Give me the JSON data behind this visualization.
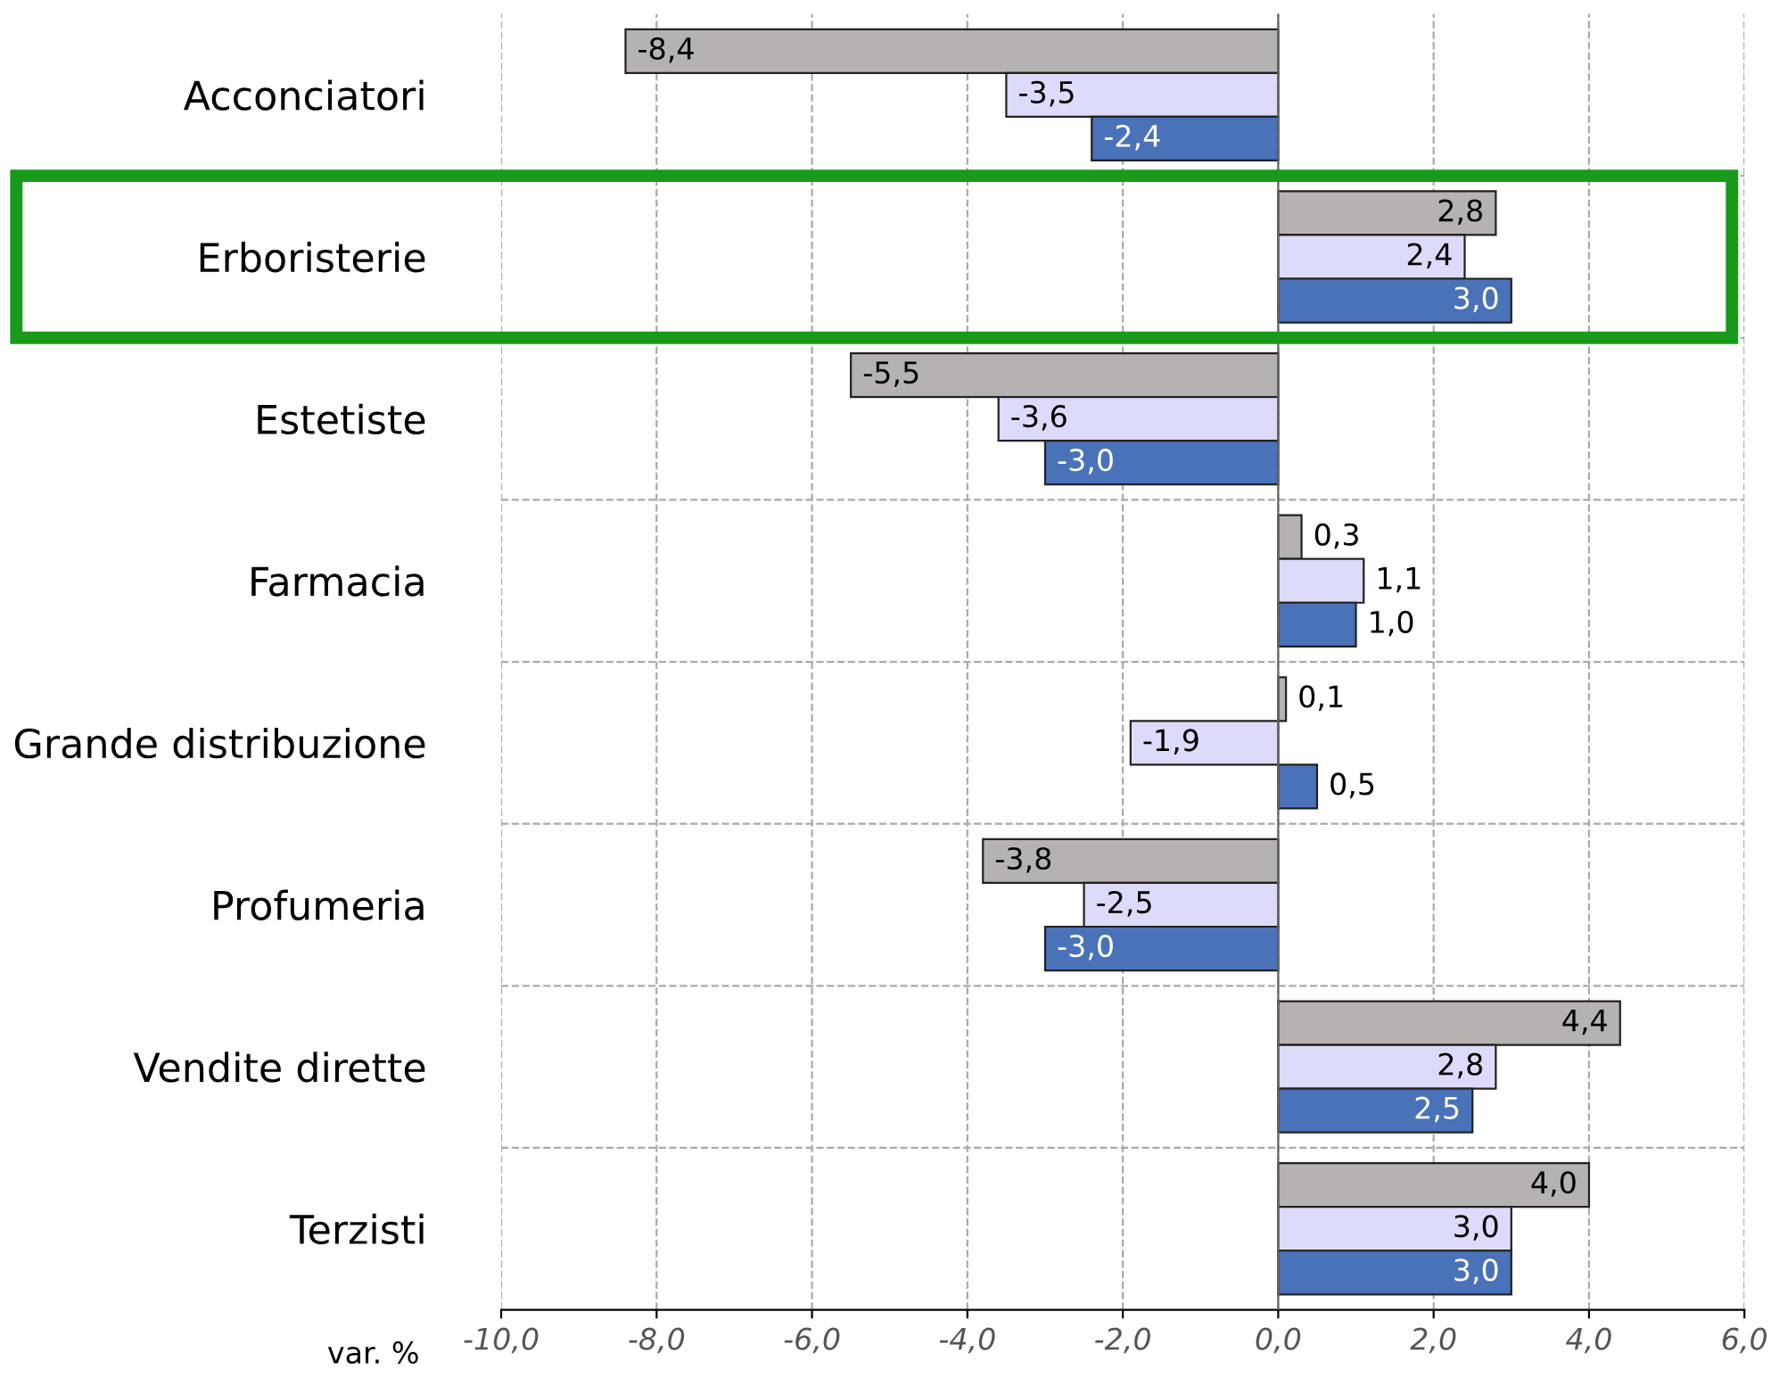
{
  "chart_data": {
    "type": "bar",
    "orientation": "horizontal",
    "xlabel": "var. %",
    "categories": [
      "Acconciatori",
      "Erboristerie",
      "Estetiste",
      "Farmacia",
      "Grande distribuzione",
      "Profumeria",
      "Vendite dirette",
      "Terzisti"
    ],
    "series": [
      {
        "color": "#b7b2b2",
        "values": [
          -8.4,
          2.8,
          -5.5,
          0.3,
          0.1,
          -3.8,
          4.4,
          4.0
        ],
        "value_labels": [
          "-8,4",
          "2,8",
          "-5,5",
          "0,3",
          "0,1",
          "-3,8",
          "4,4",
          "4,0"
        ]
      },
      {
        "color": "#dcdcfa",
        "values": [
          -3.5,
          2.4,
          -3.6,
          1.1,
          -1.9,
          -2.5,
          2.8,
          3.0
        ],
        "value_labels": [
          "-3,5",
          "2,4",
          "-3,6",
          "1,1",
          "-1,9",
          "-2,5",
          "2,8",
          "3,0"
        ]
      },
      {
        "color": "#4a72b8",
        "values": [
          -2.4,
          3.0,
          -3.0,
          1.0,
          0.5,
          -3.0,
          2.5,
          3.0
        ],
        "value_labels": [
          "-2,4",
          "3,0",
          "-3,0",
          "1,0",
          "0,5",
          "-3,0",
          "2,5",
          "3,0"
        ]
      }
    ],
    "xlim": [
      -10,
      6
    ],
    "xticks": [
      {
        "value": -10,
        "label": "-10,0"
      },
      {
        "value": -8,
        "label": "-8,0"
      },
      {
        "value": -6,
        "label": "-6,0"
      },
      {
        "value": -4,
        "label": "-4,0"
      },
      {
        "value": -2,
        "label": "-2,0"
      },
      {
        "value": 0,
        "label": "0,0"
      },
      {
        "value": 2,
        "label": "2,0"
      },
      {
        "value": 4,
        "label": "4,0"
      },
      {
        "value": 6,
        "label": "6,0"
      }
    ],
    "grid": true,
    "legend": false
  }
}
